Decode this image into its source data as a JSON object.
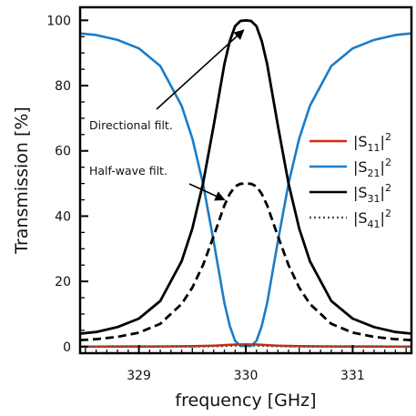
{
  "chart_data": {
    "type": "line",
    "xlabel": "frequency [GHz]",
    "ylabel": "Transmission [%]",
    "xlim": [
      328.45,
      331.55
    ],
    "ylim": [
      -2,
      104
    ],
    "grid": false,
    "legend_position": "right",
    "x_ticks": [
      329,
      330,
      331
    ],
    "y_ticks": [
      0,
      20,
      40,
      60,
      80,
      100
    ],
    "x": [
      328.45,
      328.6,
      328.8,
      329.0,
      329.2,
      329.4,
      329.5,
      329.6,
      329.7,
      329.8,
      329.85,
      329.9,
      329.95,
      330.0,
      330.05,
      330.1,
      330.15,
      330.2,
      330.3,
      330.4,
      330.5,
      330.6,
      330.8,
      331.0,
      331.2,
      331.4,
      331.55
    ],
    "series": [
      {
        "name_base": "|S",
        "name_sub": "11",
        "name_sup": "2",
        "color": "#d62a10",
        "dash": "solid",
        "values": [
          0.02,
          0.02,
          0.03,
          0.04,
          0.06,
          0.1,
          0.14,
          0.2,
          0.3,
          0.45,
          0.55,
          0.63,
          0.68,
          0.7,
          0.68,
          0.63,
          0.55,
          0.45,
          0.3,
          0.2,
          0.14,
          0.1,
          0.06,
          0.04,
          0.03,
          0.02,
          0.02
        ]
      },
      {
        "name_base": "|S",
        "name_sub": "21",
        "name_sup": "2",
        "color": "#1a7cc9",
        "dash": "solid",
        "values": [
          96.0,
          95.5,
          94.0,
          91.4,
          86.0,
          73.8,
          63.8,
          50.0,
          32.2,
          13.4,
          6.4,
          1.8,
          0.2,
          0.2,
          0.2,
          1.8,
          6.4,
          13.4,
          32.2,
          50.0,
          63.8,
          73.8,
          86.0,
          91.4,
          94.0,
          95.5,
          96.0
        ]
      },
      {
        "name_base": "|S",
        "name_sub": "31",
        "name_sup": "2",
        "color": "#000000",
        "dash": "solid",
        "values": [
          4.0,
          4.5,
          6.0,
          8.6,
          14.0,
          26.2,
          36.2,
          50.0,
          67.8,
          86.6,
          93.6,
          98.2,
          99.8,
          100.0,
          99.8,
          98.2,
          93.6,
          86.6,
          67.8,
          50.0,
          36.2,
          26.2,
          14.0,
          8.6,
          6.0,
          4.5,
          4.0
        ]
      },
      {
        "name_base": "|S",
        "name_sub": "41",
        "name_sup": "2",
        "color": "#555555",
        "dash": "dotted",
        "values": [
          0.02,
          0.02,
          0.03,
          0.04,
          0.05,
          0.07,
          0.09,
          0.12,
          0.17,
          0.25,
          0.3,
          0.34,
          0.37,
          0.38,
          0.37,
          0.34,
          0.3,
          0.25,
          0.17,
          0.12,
          0.09,
          0.07,
          0.05,
          0.04,
          0.03,
          0.02,
          0.02
        ]
      },
      {
        "color": "#000000",
        "dash": "dashed",
        "show_in_legend": false,
        "values": [
          2.0,
          2.3,
          3.0,
          4.3,
          7.0,
          13.1,
          18.1,
          25.0,
          33.9,
          43.3,
          46.8,
          49.1,
          49.9,
          50.0,
          49.9,
          49.1,
          46.8,
          43.3,
          33.9,
          25.0,
          18.1,
          13.1,
          7.0,
          4.3,
          3.0,
          2.3,
          2.0
        ]
      }
    ],
    "annotations": [
      {
        "text": "Directional filt.",
        "arrow_target": [
          329.98,
          97
        ]
      },
      {
        "text": "Half-wave filt.",
        "arrow_target": [
          329.8,
          45
        ]
      }
    ]
  }
}
